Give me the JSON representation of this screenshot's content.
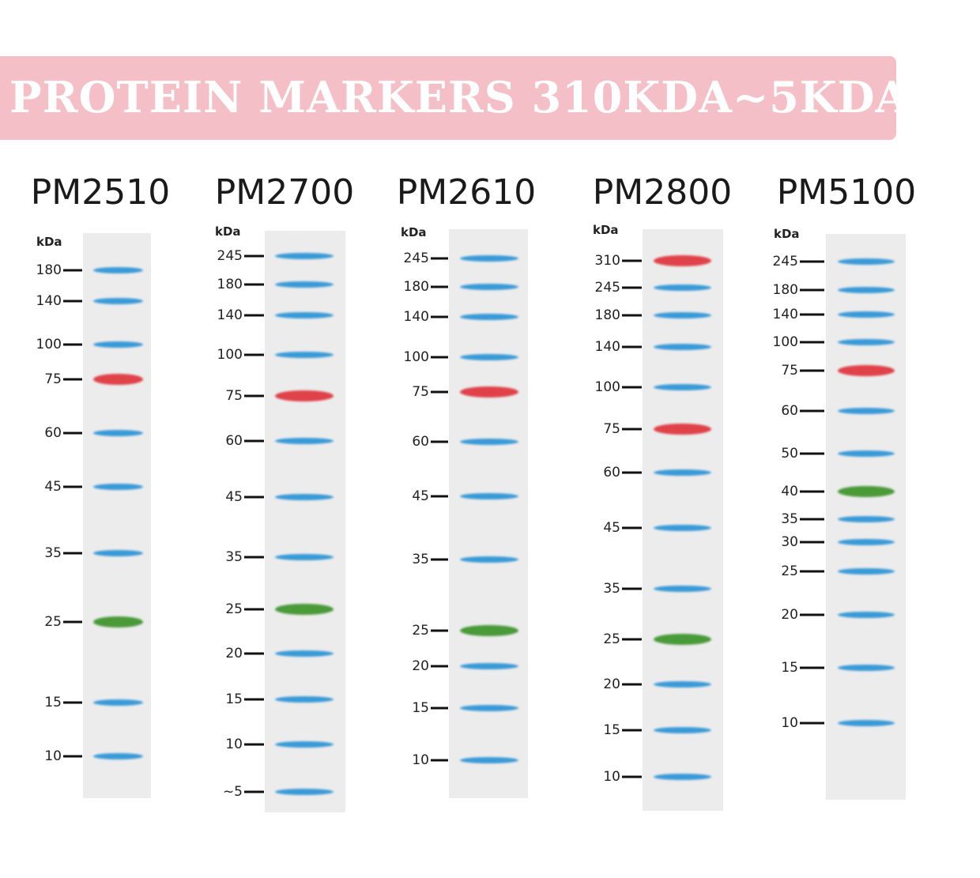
{
  "banner": {
    "title": "PROTEIN MARKERS 310KDA~5KDA",
    "color": "#f4bfc6"
  },
  "colors": {
    "blue": "#3a9ad8",
    "red": "#e0424a",
    "green": "#4a9a3a"
  },
  "panels": [
    {
      "title": "PM2510",
      "unit": "kDa",
      "bands": [
        {
          "label": "180",
          "color": "blue"
        },
        {
          "label": "140",
          "color": "blue"
        },
        {
          "label": "100",
          "color": "blue"
        },
        {
          "label": "75",
          "color": "red"
        },
        {
          "label": "60",
          "color": "blue"
        },
        {
          "label": "45",
          "color": "blue"
        },
        {
          "label": "35",
          "color": "blue"
        },
        {
          "label": "25",
          "color": "green"
        },
        {
          "label": "15",
          "color": "blue"
        },
        {
          "label": "10",
          "color": "blue"
        }
      ]
    },
    {
      "title": "PM2700",
      "unit": "kDa",
      "bands": [
        {
          "label": "245",
          "color": "blue"
        },
        {
          "label": "180",
          "color": "blue"
        },
        {
          "label": "140",
          "color": "blue"
        },
        {
          "label": "100",
          "color": "blue"
        },
        {
          "label": "75",
          "color": "red"
        },
        {
          "label": "60",
          "color": "blue"
        },
        {
          "label": "45",
          "color": "blue"
        },
        {
          "label": "35",
          "color": "blue"
        },
        {
          "label": "25",
          "color": "green"
        },
        {
          "label": "20",
          "color": "blue"
        },
        {
          "label": "15",
          "color": "blue"
        },
        {
          "label": "10",
          "color": "blue"
        },
        {
          "label": "~5",
          "color": "blue"
        }
      ]
    },
    {
      "title": "PM2610",
      "unit": "kDa",
      "bands": [
        {
          "label": "245",
          "color": "blue"
        },
        {
          "label": "180",
          "color": "blue"
        },
        {
          "label": "140",
          "color": "blue"
        },
        {
          "label": "100",
          "color": "blue"
        },
        {
          "label": "75",
          "color": "red"
        },
        {
          "label": "60",
          "color": "blue"
        },
        {
          "label": "45",
          "color": "blue"
        },
        {
          "label": "35",
          "color": "blue"
        },
        {
          "label": "25",
          "color": "green"
        },
        {
          "label": "20",
          "color": "blue"
        },
        {
          "label": "15",
          "color": "blue"
        },
        {
          "label": "10",
          "color": "blue"
        }
      ]
    },
    {
      "title": "PM2800",
      "unit": "kDa",
      "bands": [
        {
          "label": "310",
          "color": "red"
        },
        {
          "label": "245",
          "color": "blue"
        },
        {
          "label": "180",
          "color": "blue"
        },
        {
          "label": "140",
          "color": "blue"
        },
        {
          "label": "100",
          "color": "blue"
        },
        {
          "label": "75",
          "color": "red"
        },
        {
          "label": "60",
          "color": "blue"
        },
        {
          "label": "45",
          "color": "blue"
        },
        {
          "label": "35",
          "color": "blue"
        },
        {
          "label": "25",
          "color": "green"
        },
        {
          "label": "20",
          "color": "blue"
        },
        {
          "label": "15",
          "color": "blue"
        },
        {
          "label": "10",
          "color": "blue"
        }
      ]
    },
    {
      "title": "PM5100",
      "unit": "kDa",
      "bands": [
        {
          "label": "245",
          "color": "blue"
        },
        {
          "label": "180",
          "color": "blue"
        },
        {
          "label": "140",
          "color": "blue"
        },
        {
          "label": "100",
          "color": "blue"
        },
        {
          "label": "75",
          "color": "red"
        },
        {
          "label": "60",
          "color": "blue"
        },
        {
          "label": "50",
          "color": "blue"
        },
        {
          "label": "40",
          "color": "green"
        },
        {
          "label": "35",
          "color": "blue"
        },
        {
          "label": "30",
          "color": "blue"
        },
        {
          "label": "25",
          "color": "blue"
        },
        {
          "label": "20",
          "color": "blue"
        },
        {
          "label": "15",
          "color": "blue"
        },
        {
          "label": "10",
          "color": "blue"
        }
      ]
    }
  ]
}
